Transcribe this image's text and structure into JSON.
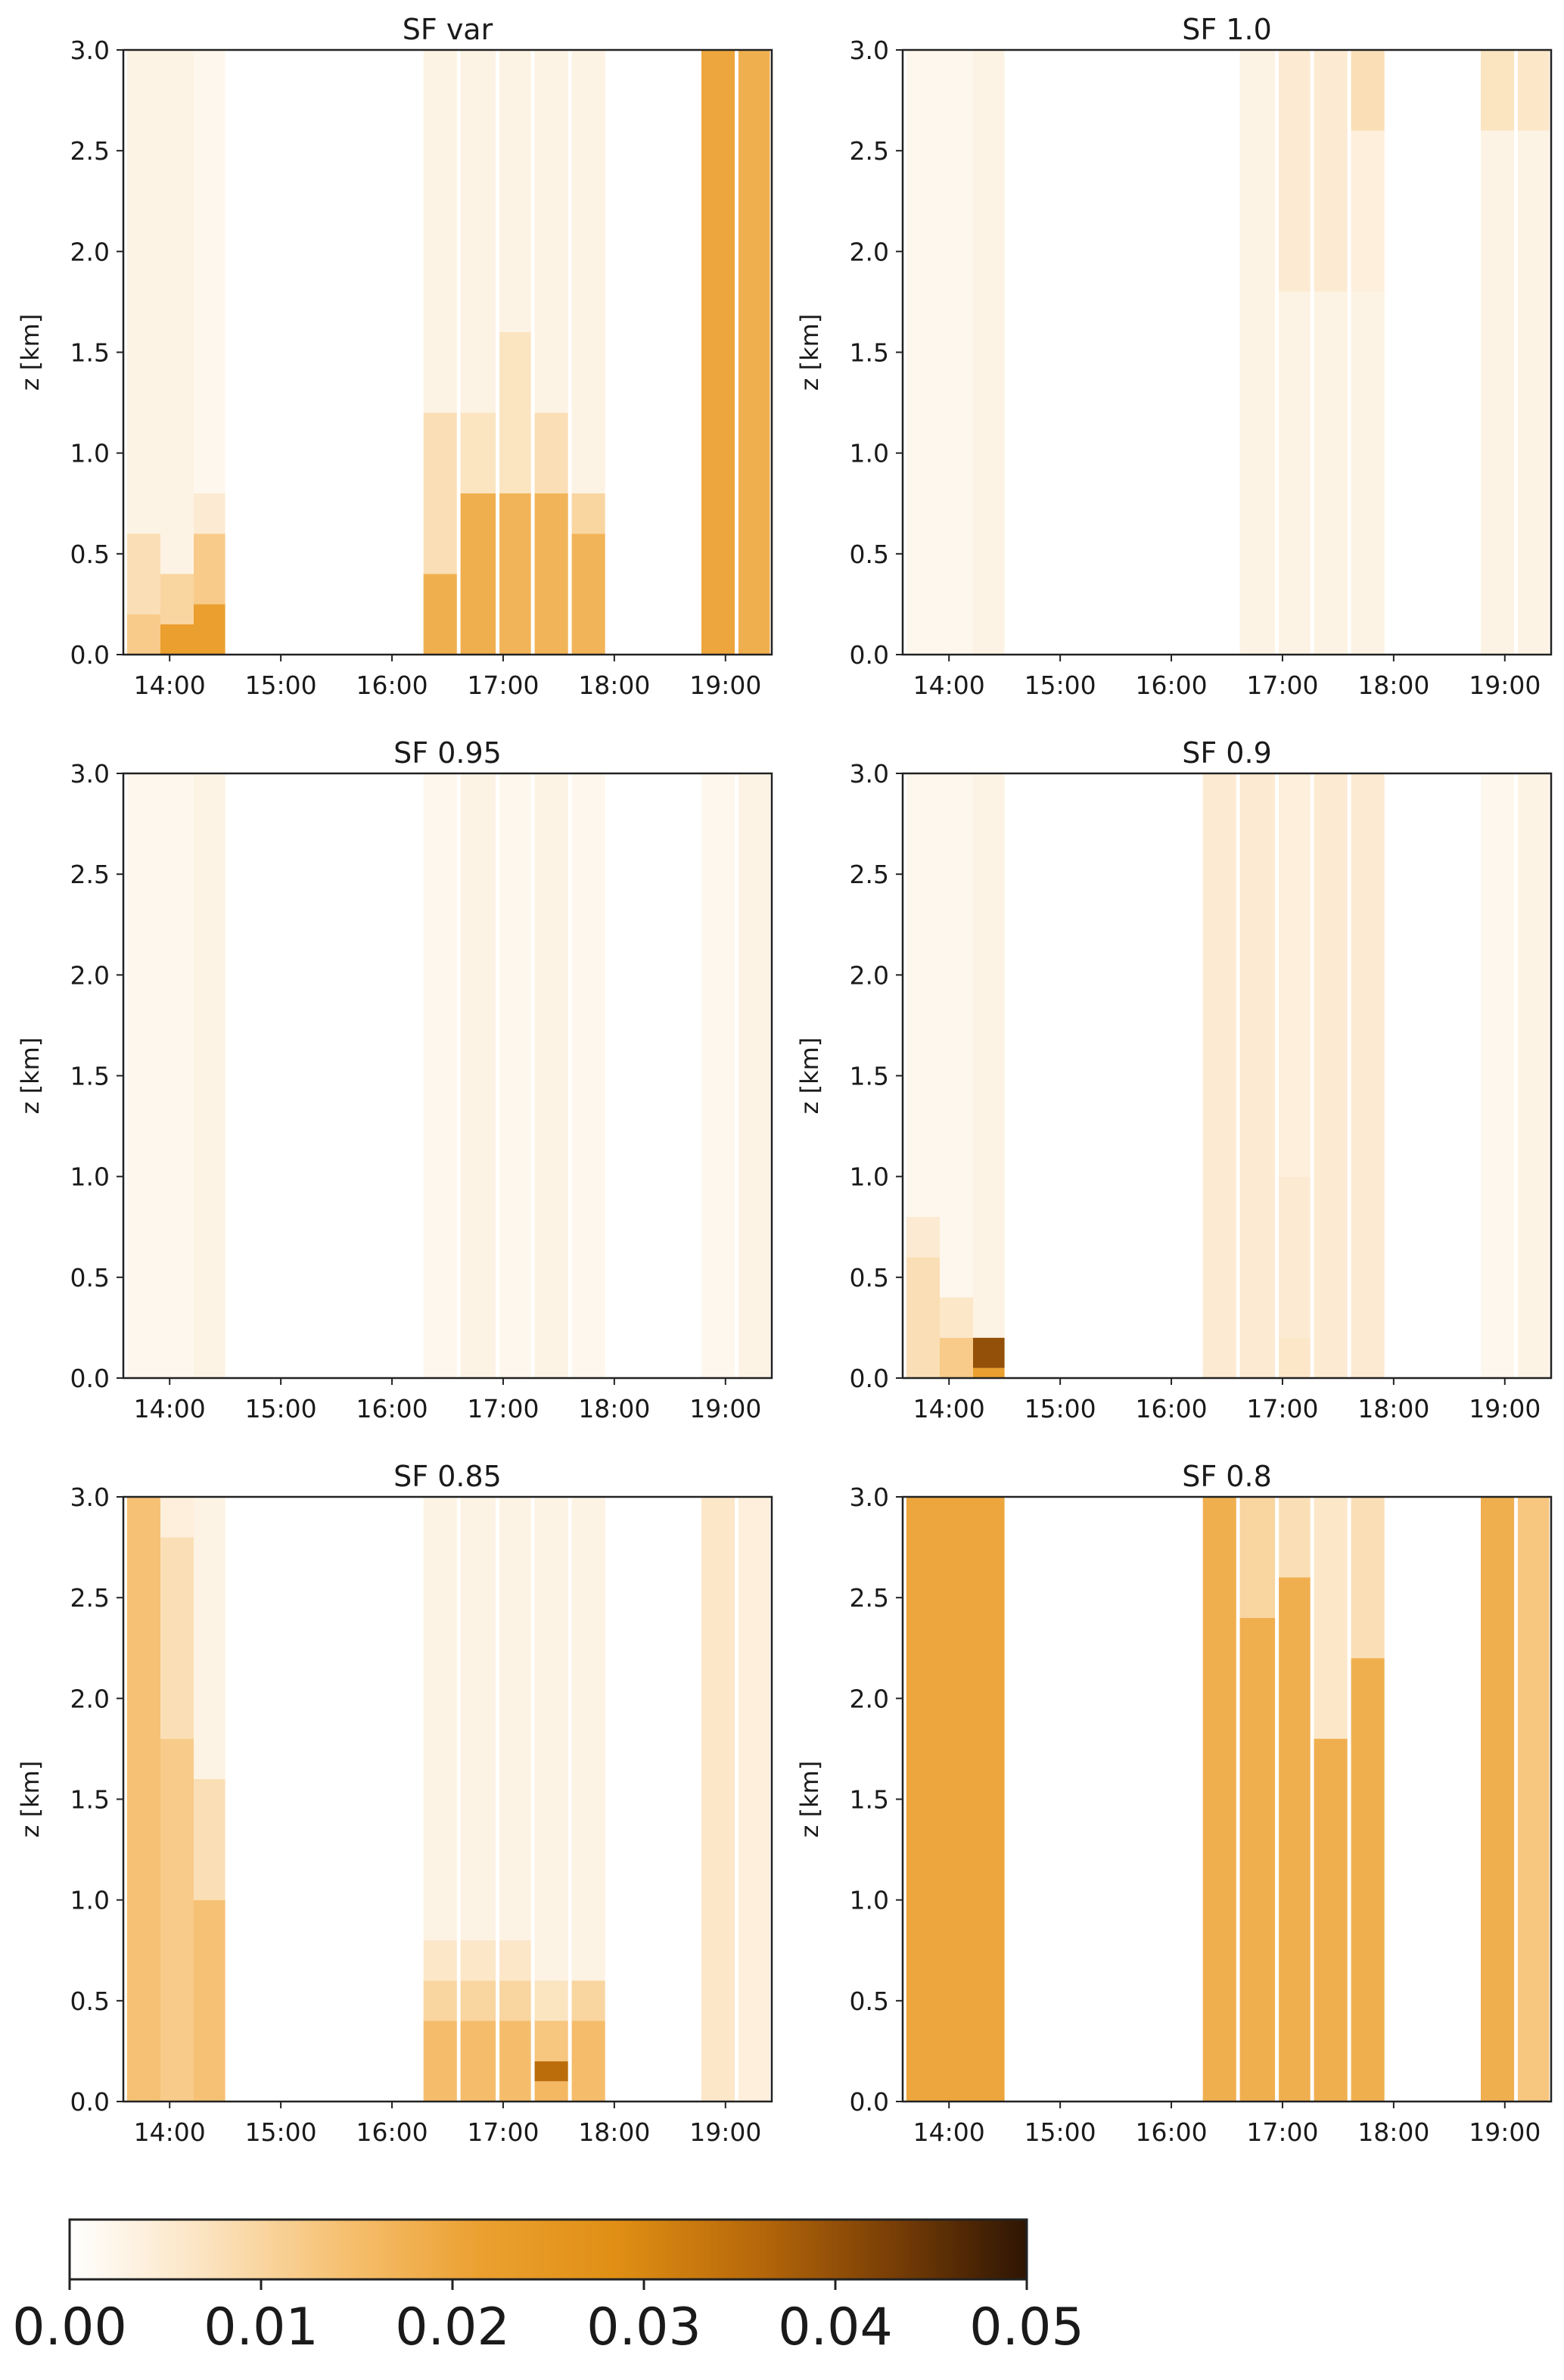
{
  "figure": {
    "colorbar": {
      "ticks": [
        "0.00",
        "0.01",
        "0.02",
        "0.03",
        "0.04",
        "0.05"
      ],
      "range": [
        0,
        0.05
      ],
      "colormap": [
        "#ffffff",
        "#fbe3bf",
        "#f6c071",
        "#eba030",
        "#e08f14",
        "#b8690a",
        "#7a3f06",
        "#2e1503"
      ]
    }
  },
  "chart_data": [
    {
      "type": "heatmap",
      "title": "SF var",
      "ylabel": "z [km]",
      "xlim": [
        "13:35",
        "19:25"
      ],
      "ylim": [
        0,
        3.0
      ],
      "xticks": [
        "14:00",
        "15:00",
        "16:00",
        "17:00",
        "18:00",
        "19:00"
      ],
      "yticks": [
        "0.0",
        "0.5",
        "1.0",
        "1.5",
        "2.0",
        "2.5",
        "3.0"
      ],
      "columns": [
        {
          "start": "13:37",
          "end": "13:55",
          "layers": [
            [
              0,
              0.2,
              0.012
            ],
            [
              0.2,
              0.6,
              0.008
            ],
            [
              0.6,
              3.0,
              0.003
            ]
          ]
        },
        {
          "start": "13:55",
          "end": "14:13",
          "layers": [
            [
              0,
              0.15,
              0.022
            ],
            [
              0.15,
              0.4,
              0.01
            ],
            [
              0.4,
              3.0,
              0.003
            ]
          ]
        },
        {
          "start": "14:13",
          "end": "14:30",
          "layers": [
            [
              0,
              0.25,
              0.022
            ],
            [
              0.25,
              0.6,
              0.012
            ],
            [
              0.6,
              0.8,
              0.005
            ],
            [
              0.8,
              3.0,
              0.002
            ]
          ]
        },
        {
          "start": "16:17",
          "end": "16:35",
          "layers": [
            [
              0,
              0.4,
              0.018
            ],
            [
              0.4,
              1.2,
              0.008
            ],
            [
              1.2,
              3.0,
              0.003
            ]
          ]
        },
        {
          "start": "16:37",
          "end": "16:56",
          "layers": [
            [
              0,
              0.8,
              0.018
            ],
            [
              0.8,
              1.2,
              0.007
            ],
            [
              1.2,
              3.0,
              0.003
            ]
          ]
        },
        {
          "start": "16:58",
          "end": "17:15",
          "layers": [
            [
              0,
              0.8,
              0.017
            ],
            [
              0.8,
              1.6,
              0.007
            ],
            [
              1.6,
              3.0,
              0.003
            ]
          ]
        },
        {
          "start": "17:17",
          "end": "17:35",
          "layers": [
            [
              0,
              0.8,
              0.017
            ],
            [
              0.8,
              1.2,
              0.008
            ],
            [
              1.2,
              3.0,
              0.003
            ]
          ]
        },
        {
          "start": "17:37",
          "end": "17:55",
          "layers": [
            [
              0,
              0.6,
              0.017
            ],
            [
              0.6,
              0.8,
              0.01
            ],
            [
              0.8,
              3.0,
              0.003
            ]
          ]
        },
        {
          "start": "18:47",
          "end": "19:05",
          "layers": [
            [
              0,
              3.0,
              0.02
            ]
          ]
        },
        {
          "start": "19:07",
          "end": "19:24",
          "layers": [
            [
              0,
              3.0,
              0.018
            ]
          ]
        }
      ]
    },
    {
      "type": "heatmap",
      "title": "SF 1.0",
      "ylabel": "z [km]",
      "xlim": [
        "13:35",
        "19:25"
      ],
      "ylim": [
        0,
        3.0
      ],
      "xticks": [
        "14:00",
        "15:00",
        "16:00",
        "17:00",
        "18:00",
        "19:00"
      ],
      "yticks": [
        "0.0",
        "0.5",
        "1.0",
        "1.5",
        "2.0",
        "2.5",
        "3.0"
      ],
      "columns": [
        {
          "start": "13:37",
          "end": "13:55",
          "layers": [
            [
              0,
              3.0,
              0.002
            ]
          ]
        },
        {
          "start": "13:55",
          "end": "14:13",
          "layers": [
            [
              0,
              3.0,
              0.002
            ]
          ]
        },
        {
          "start": "14:13",
          "end": "14:30",
          "layers": [
            [
              0,
              3.0,
              0.003
            ]
          ]
        },
        {
          "start": "16:37",
          "end": "16:56",
          "layers": [
            [
              0,
              3.0,
              0.003
            ]
          ]
        },
        {
          "start": "16:58",
          "end": "17:15",
          "layers": [
            [
              0,
              1.8,
              0.003
            ],
            [
              1.8,
              3.0,
              0.005
            ]
          ]
        },
        {
          "start": "17:17",
          "end": "17:35",
          "layers": [
            [
              0,
              1.8,
              0.003
            ],
            [
              1.8,
              3.0,
              0.005
            ]
          ]
        },
        {
          "start": "17:37",
          "end": "17:55",
          "layers": [
            [
              0,
              1.8,
              0.003
            ],
            [
              1.8,
              2.6,
              0.004
            ],
            [
              2.6,
              3.0,
              0.008
            ]
          ]
        },
        {
          "start": "18:47",
          "end": "19:05",
          "layers": [
            [
              0,
              2.6,
              0.003
            ],
            [
              2.6,
              3.0,
              0.007
            ]
          ]
        },
        {
          "start": "19:07",
          "end": "19:24",
          "layers": [
            [
              0,
              2.6,
              0.003
            ],
            [
              2.6,
              3.0,
              0.006
            ]
          ]
        }
      ]
    },
    {
      "type": "heatmap",
      "title": "SF 0.95",
      "ylabel": "z [km]",
      "xlim": [
        "13:35",
        "19:25"
      ],
      "ylim": [
        0,
        3.0
      ],
      "xticks": [
        "14:00",
        "15:00",
        "16:00",
        "17:00",
        "18:00",
        "19:00"
      ],
      "yticks": [
        "0.0",
        "0.5",
        "1.0",
        "1.5",
        "2.0",
        "2.5",
        "3.0"
      ],
      "columns": [
        {
          "start": "13:37",
          "end": "13:55",
          "layers": [
            [
              0,
              3.0,
              0.002
            ]
          ]
        },
        {
          "start": "13:55",
          "end": "14:13",
          "layers": [
            [
              0,
              3.0,
              0.002
            ]
          ]
        },
        {
          "start": "14:13",
          "end": "14:30",
          "layers": [
            [
              0,
              3.0,
              0.003
            ]
          ]
        },
        {
          "start": "16:17",
          "end": "16:35",
          "layers": [
            [
              0,
              3.0,
              0.002
            ]
          ]
        },
        {
          "start": "16:37",
          "end": "16:56",
          "layers": [
            [
              0,
              3.0,
              0.003
            ]
          ]
        },
        {
          "start": "16:58",
          "end": "17:15",
          "layers": [
            [
              0,
              3.0,
              0.002
            ]
          ]
        },
        {
          "start": "17:17",
          "end": "17:35",
          "layers": [
            [
              0,
              3.0,
              0.003
            ]
          ]
        },
        {
          "start": "17:37",
          "end": "17:55",
          "layers": [
            [
              0,
              3.0,
              0.002
            ]
          ]
        },
        {
          "start": "18:47",
          "end": "19:05",
          "layers": [
            [
              0,
              3.0,
              0.002
            ]
          ]
        },
        {
          "start": "19:07",
          "end": "19:24",
          "layers": [
            [
              0,
              3.0,
              0.003
            ]
          ]
        }
      ]
    },
    {
      "type": "heatmap",
      "title": "SF 0.9",
      "ylabel": "z [km]",
      "xlim": [
        "13:35",
        "19:25"
      ],
      "ylim": [
        0,
        3.0
      ],
      "xticks": [
        "14:00",
        "15:00",
        "16:00",
        "17:00",
        "18:00",
        "19:00"
      ],
      "yticks": [
        "0.0",
        "0.5",
        "1.0",
        "1.5",
        "2.0",
        "2.5",
        "3.0"
      ],
      "columns": [
        {
          "start": "13:37",
          "end": "13:55",
          "layers": [
            [
              0,
              0.6,
              0.008
            ],
            [
              0.6,
              0.8,
              0.005
            ],
            [
              0.8,
              3.0,
              0.002
            ]
          ]
        },
        {
          "start": "13:55",
          "end": "14:13",
          "layers": [
            [
              0,
              0.2,
              0.012
            ],
            [
              0.2,
              0.4,
              0.006
            ],
            [
              0.4,
              3.0,
              0.002
            ]
          ]
        },
        {
          "start": "14:13",
          "end": "14:30",
          "layers": [
            [
              0,
              0.05,
              0.022
            ],
            [
              0.05,
              0.2,
              0.04
            ],
            [
              0.2,
              3.0,
              0.003
            ]
          ]
        },
        {
          "start": "16:17",
          "end": "16:35",
          "layers": [
            [
              0,
              3.0,
              0.005
            ]
          ]
        },
        {
          "start": "16:37",
          "end": "16:56",
          "layers": [
            [
              0,
              3.0,
              0.005
            ]
          ]
        },
        {
          "start": "16:58",
          "end": "17:15",
          "layers": [
            [
              0,
              0.2,
              0.006
            ],
            [
              0.2,
              1.0,
              0.005
            ],
            [
              1.0,
              3.0,
              0.004
            ]
          ]
        },
        {
          "start": "17:17",
          "end": "17:35",
          "layers": [
            [
              0,
              3.0,
              0.005
            ]
          ]
        },
        {
          "start": "17:37",
          "end": "17:55",
          "layers": [
            [
              0,
              3.0,
              0.005
            ]
          ]
        },
        {
          "start": "18:47",
          "end": "19:05",
          "layers": [
            [
              0,
              3.0,
              0.002
            ]
          ]
        },
        {
          "start": "19:07",
          "end": "19:24",
          "layers": [
            [
              0,
              3.0,
              0.003
            ]
          ]
        }
      ]
    },
    {
      "type": "heatmap",
      "title": "SF 0.85",
      "ylabel": "z [km]",
      "xlim": [
        "13:35",
        "19:25"
      ],
      "ylim": [
        0,
        3.0
      ],
      "xticks": [
        "14:00",
        "15:00",
        "16:00",
        "17:00",
        "18:00",
        "19:00"
      ],
      "yticks": [
        "0.0",
        "0.5",
        "1.0",
        "1.5",
        "2.0",
        "2.5",
        "3.0"
      ],
      "columns": [
        {
          "start": "13:37",
          "end": "13:55",
          "layers": [
            [
              0,
              3.0,
              0.014
            ]
          ]
        },
        {
          "start": "13:55",
          "end": "14:13",
          "layers": [
            [
              0,
              1.8,
              0.012
            ],
            [
              1.8,
              2.8,
              0.008
            ],
            [
              2.8,
              3.0,
              0.004
            ]
          ]
        },
        {
          "start": "14:13",
          "end": "14:30",
          "layers": [
            [
              0,
              1.0,
              0.014
            ],
            [
              1.0,
              1.6,
              0.008
            ],
            [
              1.6,
              3.0,
              0.003
            ]
          ]
        },
        {
          "start": "16:17",
          "end": "16:35",
          "layers": [
            [
              0,
              0.4,
              0.015
            ],
            [
              0.4,
              0.6,
              0.01
            ],
            [
              0.6,
              0.8,
              0.006
            ],
            [
              0.8,
              3.0,
              0.003
            ]
          ]
        },
        {
          "start": "16:37",
          "end": "16:56",
          "layers": [
            [
              0,
              0.4,
              0.015
            ],
            [
              0.4,
              0.6,
              0.01
            ],
            [
              0.6,
              0.8,
              0.006
            ],
            [
              0.8,
              3.0,
              0.003
            ]
          ]
        },
        {
          "start": "16:58",
          "end": "17:15",
          "layers": [
            [
              0,
              0.4,
              0.015
            ],
            [
              0.4,
              0.6,
              0.01
            ],
            [
              0.6,
              0.8,
              0.006
            ],
            [
              0.8,
              3.0,
              0.003
            ]
          ]
        },
        {
          "start": "17:17",
          "end": "17:35",
          "layers": [
            [
              0,
              0.1,
              0.016
            ],
            [
              0.1,
              0.2,
              0.035
            ],
            [
              0.2,
              0.4,
              0.013
            ],
            [
              0.4,
              0.6,
              0.007
            ],
            [
              0.6,
              3.0,
              0.003
            ]
          ]
        },
        {
          "start": "17:37",
          "end": "17:55",
          "layers": [
            [
              0,
              0.4,
              0.015
            ],
            [
              0.4,
              0.6,
              0.01
            ],
            [
              0.6,
              3.0,
              0.003
            ]
          ]
        },
        {
          "start": "18:47",
          "end": "19:05",
          "layers": [
            [
              0,
              3.0,
              0.006
            ]
          ]
        },
        {
          "start": "19:07",
          "end": "19:24",
          "layers": [
            [
              0,
              3.0,
              0.004
            ]
          ]
        }
      ]
    },
    {
      "type": "heatmap",
      "title": "SF 0.8",
      "ylabel": "z [km]",
      "xlim": [
        "13:35",
        "19:25"
      ],
      "ylim": [
        0,
        3.0
      ],
      "xticks": [
        "14:00",
        "15:00",
        "16:00",
        "17:00",
        "18:00",
        "19:00"
      ],
      "yticks": [
        "0.0",
        "0.5",
        "1.0",
        "1.5",
        "2.0",
        "2.5",
        "3.0"
      ],
      "columns": [
        {
          "start": "13:37",
          "end": "13:55",
          "layers": [
            [
              0,
              3.0,
              0.02
            ]
          ]
        },
        {
          "start": "13:55",
          "end": "14:13",
          "layers": [
            [
              0,
              3.0,
              0.02
            ]
          ]
        },
        {
          "start": "14:13",
          "end": "14:30",
          "layers": [
            [
              0,
              3.0,
              0.02
            ]
          ]
        },
        {
          "start": "16:17",
          "end": "16:35",
          "layers": [
            [
              0,
              3.0,
              0.018
            ]
          ]
        },
        {
          "start": "16:37",
          "end": "16:56",
          "layers": [
            [
              0,
              2.4,
              0.018
            ],
            [
              2.4,
              3.0,
              0.01
            ]
          ]
        },
        {
          "start": "16:58",
          "end": "17:15",
          "layers": [
            [
              0,
              2.6,
              0.018
            ],
            [
              2.6,
              3.0,
              0.008
            ]
          ]
        },
        {
          "start": "17:17",
          "end": "17:35",
          "layers": [
            [
              0,
              1.8,
              0.018
            ],
            [
              1.8,
              3.0,
              0.006
            ]
          ]
        },
        {
          "start": "17:37",
          "end": "17:55",
          "layers": [
            [
              0,
              2.2,
              0.018
            ],
            [
              2.2,
              3.0,
              0.008
            ]
          ]
        },
        {
          "start": "18:47",
          "end": "19:05",
          "layers": [
            [
              0,
              3.0,
              0.018
            ]
          ]
        },
        {
          "start": "19:07",
          "end": "19:24",
          "layers": [
            [
              0,
              3.0,
              0.013
            ]
          ]
        }
      ]
    }
  ]
}
